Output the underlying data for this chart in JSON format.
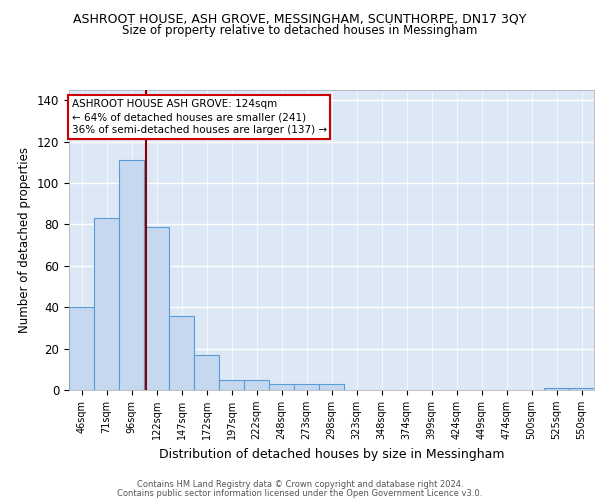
{
  "title1": "ASHROOT HOUSE, ASH GROVE, MESSINGHAM, SCUNTHORPE, DN17 3QY",
  "title2": "Size of property relative to detached houses in Messingham",
  "xlabel": "Distribution of detached houses by size in Messingham",
  "ylabel": "Number of detached properties",
  "categories": [
    "46sqm",
    "71sqm",
    "96sqm",
    "122sqm",
    "147sqm",
    "172sqm",
    "197sqm",
    "222sqm",
    "248sqm",
    "273sqm",
    "298sqm",
    "323sqm",
    "348sqm",
    "374sqm",
    "399sqm",
    "424sqm",
    "449sqm",
    "474sqm",
    "500sqm",
    "525sqm",
    "550sqm"
  ],
  "values": [
    40,
    83,
    111,
    79,
    36,
    17,
    5,
    5,
    3,
    3,
    3,
    0,
    0,
    0,
    0,
    0,
    0,
    0,
    0,
    1,
    1
  ],
  "bar_color": "#c5d8f0",
  "bar_edge_color": "#5b9bd5",
  "background_color": "#dde8f6",
  "grid_color": "#ffffff",
  "vline_x": 2.58,
  "vline_color": "#8b0000",
  "annotation_text": "ASHROOT HOUSE ASH GROVE: 124sqm\n← 64% of detached houses are smaller (241)\n36% of semi-detached houses are larger (137) →",
  "annotation_box_color": "#ffffff",
  "annotation_box_edge": "#cc0000",
  "footer1": "Contains HM Land Registry data © Crown copyright and database right 2024.",
  "footer2": "Contains public sector information licensed under the Open Government Licence v3.0.",
  "ylim": [
    0,
    145
  ],
  "yticks": [
    0,
    20,
    40,
    60,
    80,
    100,
    120,
    140
  ]
}
